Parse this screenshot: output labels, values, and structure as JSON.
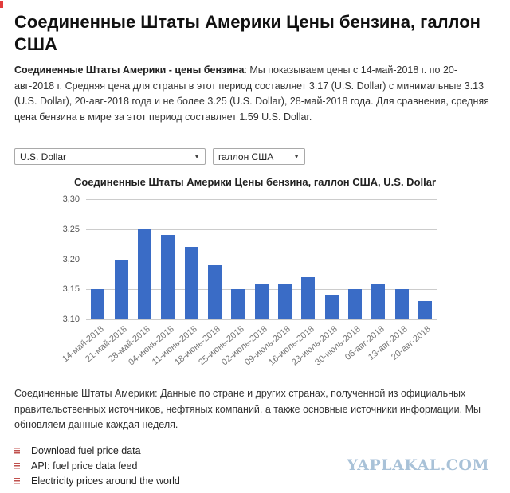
{
  "header": {
    "title": "Соединенные Штаты Америки Цены бензина, галлон США",
    "intro_lead": "Соединенные Штаты Америки - цены бензина",
    "intro_text": ": Мы показываем цены с 14-май-2018 г. по 20-авг-2018 г. Средняя цена для страны в этот период составляет 3.17 (U.S. Dollar) с минимальные 3.13 (U.S. Dollar), 20-авг-2018 года и не более 3.25 (U.S. Dollar), 28-май-2018 года. Для сравнения, средняя цена бензина в мире за этот период составляет 1.59 U.S. Dollar."
  },
  "controls": {
    "currency_select_value": "U.S. Dollar",
    "unit_select_value": "галлон США",
    "dropdown_arrow": "▼"
  },
  "chart_data": {
    "type": "bar",
    "title": "Соединенные Штаты Америки Цены бензина, галлон США, U.S. Dollar",
    "categories": [
      "14-май-2018",
      "21-май-2018",
      "28-май-2018",
      "04-июнь-2018",
      "11-июнь-2018",
      "18-июнь-2018",
      "25-июнь-2018",
      "02-июль-2018",
      "09-июль-2018",
      "16-июль-2018",
      "23-июль-2018",
      "30-июль-2018",
      "06-авг-2018",
      "13-авг-2018",
      "20-авг-2018"
    ],
    "values": [
      3.15,
      3.2,
      3.25,
      3.24,
      3.22,
      3.19,
      3.15,
      3.16,
      3.16,
      3.17,
      3.14,
      3.15,
      3.16,
      3.15,
      3.13
    ],
    "xlabel": "",
    "ylabel": "",
    "ylim": [
      3.1,
      3.3
    ],
    "yticks": {
      "values": [
        3.3,
        3.25,
        3.2,
        3.15,
        3.1
      ],
      "labels": [
        "3,30",
        "3,25",
        "3,20",
        "3,15",
        "3,10"
      ]
    },
    "grid": true,
    "legend": "none",
    "bar_color": "#3a6cc6",
    "grid_color": "#cccccc"
  },
  "footer": {
    "note": "Соединенные Штаты Америки: Данные по стране и других странах, полученной из официальных правительственных источников, нефтяных компаний, а также основные источники информации. Мы обновляем данные каждая неделя.",
    "links": [
      "Download fuel price data",
      "API: fuel price data feed",
      "Electricity prices around the world"
    ]
  },
  "watermark": {
    "text": "YAPLAKAL.COM",
    "color": "#a9c2d8"
  }
}
